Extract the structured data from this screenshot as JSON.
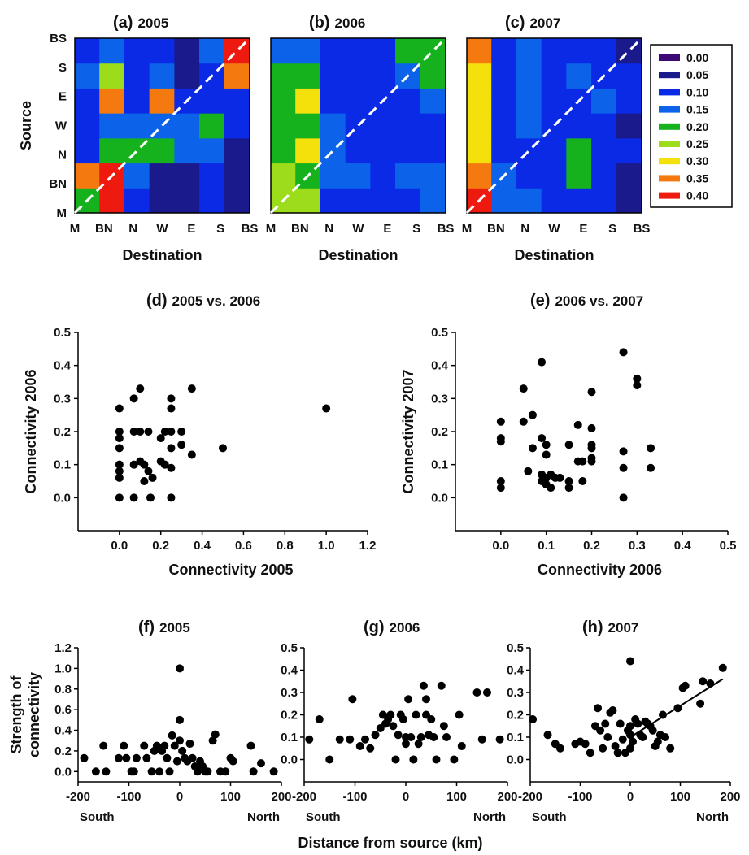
{
  "chart_data": [
    {
      "panel": "a",
      "type": "heatmap",
      "title_letter": "(a)",
      "title_year": "2005",
      "x_categories": [
        "M",
        "BN",
        "N",
        "W",
        "E",
        "S",
        "BS"
      ],
      "y_categories": [
        "M",
        "BN",
        "N",
        "W",
        "E",
        "S",
        "BS"
      ],
      "xlabel": "Destination",
      "ylabel": "Source",
      "values": [
        [
          0.2,
          0.4,
          0.1,
          0.05,
          0.05,
          0.1,
          0.05
        ],
        [
          0.35,
          0.4,
          0.15,
          0.05,
          0.05,
          0.1,
          0.05
        ],
        [
          0.1,
          0.2,
          0.2,
          0.2,
          0.15,
          0.15,
          0.05
        ],
        [
          0.1,
          0.15,
          0.15,
          0.15,
          0.15,
          0.2,
          0.1
        ],
        [
          0.1,
          0.35,
          0.1,
          0.35,
          0.1,
          0.1,
          0.1
        ],
        [
          0.15,
          0.25,
          0.1,
          0.15,
          0.05,
          0.1,
          0.35
        ],
        [
          0.1,
          0.15,
          0.1,
          0.1,
          0.05,
          0.15,
          0.4
        ]
      ]
    },
    {
      "panel": "b",
      "type": "heatmap",
      "title_letter": "(b)",
      "title_year": "2006",
      "x_categories": [
        "M",
        "BN",
        "N",
        "W",
        "E",
        "S",
        "BS"
      ],
      "y_categories": [
        "M",
        "BN",
        "N",
        "W",
        "E",
        "S",
        "BS"
      ],
      "xlabel": "Destination",
      "values": [
        [
          0.25,
          0.25,
          0.1,
          0.1,
          0.1,
          0.1,
          0.15
        ],
        [
          0.25,
          0.2,
          0.15,
          0.15,
          0.1,
          0.15,
          0.15
        ],
        [
          0.2,
          0.3,
          0.15,
          0.1,
          0.1,
          0.1,
          0.1
        ],
        [
          0.2,
          0.2,
          0.15,
          0.1,
          0.1,
          0.1,
          0.1
        ],
        [
          0.2,
          0.3,
          0.1,
          0.1,
          0.1,
          0.1,
          0.15
        ],
        [
          0.2,
          0.2,
          0.1,
          0.1,
          0.1,
          0.15,
          0.2
        ],
        [
          0.15,
          0.15,
          0.1,
          0.1,
          0.1,
          0.2,
          0.2
        ]
      ]
    },
    {
      "panel": "c",
      "type": "heatmap",
      "title_letter": "(c)",
      "title_year": "2007",
      "x_categories": [
        "M",
        "BN",
        "N",
        "W",
        "E",
        "S",
        "BS"
      ],
      "y_categories": [
        "M",
        "BN",
        "N",
        "W",
        "E",
        "S",
        "BS"
      ],
      "xlabel": "Destination",
      "values": [
        [
          0.4,
          0.15,
          0.15,
          0.1,
          0.1,
          0.1,
          0.05
        ],
        [
          0.35,
          0.15,
          0.1,
          0.1,
          0.2,
          0.1,
          0.05
        ],
        [
          0.3,
          0.1,
          0.1,
          0.1,
          0.2,
          0.1,
          0.1
        ],
        [
          0.3,
          0.1,
          0.15,
          0.1,
          0.1,
          0.1,
          0.05
        ],
        [
          0.3,
          0.1,
          0.15,
          0.1,
          0.1,
          0.15,
          0.1
        ],
        [
          0.3,
          0.1,
          0.15,
          0.1,
          0.15,
          0.1,
          0.1
        ],
        [
          0.35,
          0.1,
          0.15,
          0.1,
          0.1,
          0.1,
          0.05
        ]
      ]
    },
    {
      "panel": "legend",
      "type": "legend",
      "items": [
        {
          "label": "0.00",
          "color": "#3d0a75"
        },
        {
          "label": "0.05",
          "color": "#1b1a8c"
        },
        {
          "label": "0.10",
          "color": "#0a2ae6"
        },
        {
          "label": "0.15",
          "color": "#0c63ea"
        },
        {
          "label": "0.20",
          "color": "#16b21e"
        },
        {
          "label": "0.25",
          "color": "#9cdc1a"
        },
        {
          "label": "0.30",
          "color": "#f4e10c"
        },
        {
          "label": "0.35",
          "color": "#f47a10"
        },
        {
          "label": "0.40",
          "color": "#ee1a10"
        }
      ]
    },
    {
      "panel": "d",
      "type": "scatter",
      "title_letter": "(d)",
      "title_rest": "2005 vs. 2006",
      "xlabel": "Connectivity 2005",
      "ylabel": "Connectivity 2006",
      "xlim": [
        -0.2,
        1.2
      ],
      "ylim": [
        -0.1,
        0.5
      ],
      "xticks": [
        "0.0",
        "0.2",
        "0.4",
        "0.6",
        "0.8",
        "1.0",
        "1.2"
      ],
      "yticks": [
        "0.0",
        "0.1",
        "0.2",
        "0.3",
        "0.4",
        "0.5"
      ],
      "points": [
        [
          0,
          0.27
        ],
        [
          0,
          0.2
        ],
        [
          0,
          0.18
        ],
        [
          0,
          0.15
        ],
        [
          0,
          0.1
        ],
        [
          0,
          0.08
        ],
        [
          0,
          0.06
        ],
        [
          0,
          0.0
        ],
        [
          0.07,
          0.3
        ],
        [
          0.07,
          0.2
        ],
        [
          0.07,
          0.1
        ],
        [
          0.07,
          0.0
        ],
        [
          0.1,
          0.33
        ],
        [
          0.1,
          0.2
        ],
        [
          0.1,
          0.11
        ],
        [
          0.12,
          0.1
        ],
        [
          0.12,
          0.05
        ],
        [
          0.14,
          0.2
        ],
        [
          0.14,
          0.08
        ],
        [
          0.16,
          0.06
        ],
        [
          0.15,
          0.0
        ],
        [
          0.2,
          0.18
        ],
        [
          0.2,
          0.11
        ],
        [
          0.22,
          0.2
        ],
        [
          0.22,
          0.1
        ],
        [
          0.25,
          0.3
        ],
        [
          0.25,
          0.27
        ],
        [
          0.25,
          0.2
        ],
        [
          0.25,
          0.15
        ],
        [
          0.25,
          0.09
        ],
        [
          0.25,
          0.0
        ],
        [
          0.3,
          0.2
        ],
        [
          0.3,
          0.16
        ],
        [
          0.35,
          0.33
        ],
        [
          0.35,
          0.13
        ],
        [
          0.5,
          0.15
        ],
        [
          1.0,
          0.27
        ]
      ]
    },
    {
      "panel": "e",
      "type": "scatter",
      "title_letter": "(e)",
      "title_rest": "2006 vs. 2007",
      "xlabel": "Connectivity 2006",
      "ylabel": "Connectivity 2007",
      "xlim": [
        -0.1,
        0.5
      ],
      "ylim": [
        -0.1,
        0.5
      ],
      "xticks": [
        "0.0",
        "0.1",
        "0.2",
        "0.3",
        "0.4",
        "0.5"
      ],
      "yticks": [
        "0.0",
        "0.1",
        "0.2",
        "0.3",
        "0.4",
        "0.5"
      ],
      "points": [
        [
          0,
          0.23
        ],
        [
          0,
          0.18
        ],
        [
          0,
          0.17
        ],
        [
          0,
          0.05
        ],
        [
          0,
          0.03
        ],
        [
          0.05,
          0.33
        ],
        [
          0.05,
          0.23
        ],
        [
          0.06,
          0.08
        ],
        [
          0.07,
          0.25
        ],
        [
          0.07,
          0.15
        ],
        [
          0.09,
          0.41
        ],
        [
          0.09,
          0.18
        ],
        [
          0.09,
          0.07
        ],
        [
          0.09,
          0.05
        ],
        [
          0.1,
          0.16
        ],
        [
          0.1,
          0.13
        ],
        [
          0.1,
          0.06
        ],
        [
          0.1,
          0.04
        ],
        [
          0.11,
          0.07
        ],
        [
          0.11,
          0.03
        ],
        [
          0.12,
          0.06
        ],
        [
          0.13,
          0.06
        ],
        [
          0.15,
          0.16
        ],
        [
          0.15,
          0.05
        ],
        [
          0.15,
          0.03
        ],
        [
          0.17,
          0.22
        ],
        [
          0.17,
          0.11
        ],
        [
          0.18,
          0.05
        ],
        [
          0.18,
          0.11
        ],
        [
          0.2,
          0.32
        ],
        [
          0.2,
          0.21
        ],
        [
          0.2,
          0.16
        ],
        [
          0.2,
          0.15
        ],
        [
          0.2,
          0.12
        ],
        [
          0.2,
          0.11
        ],
        [
          0.27,
          0.44
        ],
        [
          0.27,
          0.14
        ],
        [
          0.27,
          0.09
        ],
        [
          0.27,
          0.0
        ],
        [
          0.3,
          0.36
        ],
        [
          0.3,
          0.34
        ],
        [
          0.33,
          0.15
        ],
        [
          0.33,
          0.09
        ]
      ]
    },
    {
      "panel": "f",
      "type": "scatter",
      "title_letter": "(f)",
      "title_rest": "2005",
      "ylabel_lines": [
        "Strength of",
        "connectivity"
      ],
      "xlim": [
        -200,
        200
      ],
      "ylim": [
        -0.1,
        1.2
      ],
      "xticks": [
        "-200",
        "-100",
        "0",
        "100",
        "200"
      ],
      "yticks": [
        "0.0",
        "0.2",
        "0.4",
        "0.6",
        "0.8",
        "1.0",
        "1.2"
      ],
      "south": "South",
      "north": "North",
      "points": [
        [
          -188,
          0.13
        ],
        [
          -165,
          0
        ],
        [
          -150,
          0.25
        ],
        [
          -145,
          0
        ],
        [
          -120,
          0.13
        ],
        [
          -110,
          0.25
        ],
        [
          -105,
          0.13
        ],
        [
          -95,
          0
        ],
        [
          -90,
          0
        ],
        [
          -85,
          0.13
        ],
        [
          -70,
          0.25
        ],
        [
          -65,
          0.13
        ],
        [
          -55,
          0
        ],
        [
          -50,
          0.2
        ],
        [
          -45,
          0.25
        ],
        [
          -40,
          0
        ],
        [
          -35,
          0.2
        ],
        [
          -30,
          0.25
        ],
        [
          -25,
          0.13
        ],
        [
          -20,
          0
        ],
        [
          -15,
          0.35
        ],
        [
          -10,
          0.25
        ],
        [
          -5,
          0.1
        ],
        [
          0,
          1.0
        ],
        [
          0,
          0.5
        ],
        [
          0,
          0.3
        ],
        [
          5,
          0.2
        ],
        [
          10,
          0.13
        ],
        [
          15,
          0.1
        ],
        [
          20,
          0.27
        ],
        [
          25,
          0.13
        ],
        [
          30,
          0.05
        ],
        [
          35,
          0
        ],
        [
          40,
          0.1
        ],
        [
          45,
          0.05
        ],
        [
          50,
          0
        ],
        [
          55,
          0
        ],
        [
          65,
          0.3
        ],
        [
          70,
          0.36
        ],
        [
          80,
          0
        ],
        [
          90,
          0
        ],
        [
          100,
          0.13
        ],
        [
          105,
          0.1
        ],
        [
          140,
          0.25
        ],
        [
          145,
          0
        ],
        [
          160,
          0.08
        ],
        [
          185,
          0
        ]
      ]
    },
    {
      "panel": "g",
      "type": "scatter",
      "title_letter": "(g)",
      "title_rest": "2006",
      "xlim": [
        -200,
        200
      ],
      "ylim": [
        -0.1,
        0.5
      ],
      "xticks": [
        "-200",
        "-100",
        "0",
        "100",
        "200"
      ],
      "yticks": [
        "0.0",
        "0.1",
        "0.2",
        "0.3",
        "0.4",
        "0.5"
      ],
      "south": "South",
      "north": "North",
      "points": [
        [
          -190,
          0.09
        ],
        [
          -170,
          0.18
        ],
        [
          -150,
          0
        ],
        [
          -130,
          0.09
        ],
        [
          -110,
          0.09
        ],
        [
          -105,
          0.27
        ],
        [
          -90,
          0.06
        ],
        [
          -80,
          0.09
        ],
        [
          -70,
          0.05
        ],
        [
          -60,
          0.11
        ],
        [
          -50,
          0.14
        ],
        [
          -45,
          0.2
        ],
        [
          -40,
          0.16
        ],
        [
          -35,
          0.18
        ],
        [
          -30,
          0.2
        ],
        [
          -25,
          0.15
        ],
        [
          -20,
          0
        ],
        [
          -15,
          0.11
        ],
        [
          -10,
          0.2
        ],
        [
          -5,
          0.18
        ],
        [
          0,
          0.1
        ],
        [
          0,
          0.07
        ],
        [
          5,
          0.27
        ],
        [
          10,
          0.1
        ],
        [
          15,
          0
        ],
        [
          20,
          0.2
        ],
        [
          25,
          0.07
        ],
        [
          30,
          0.1
        ],
        [
          35,
          0.33
        ],
        [
          40,
          0.27
        ],
        [
          40,
          0.2
        ],
        [
          45,
          0.11
        ],
        [
          50,
          0.18
        ],
        [
          55,
          0.1
        ],
        [
          60,
          0
        ],
        [
          70,
          0.33
        ],
        [
          75,
          0.15
        ],
        [
          80,
          0.1
        ],
        [
          95,
          0
        ],
        [
          105,
          0.2
        ],
        [
          110,
          0.06
        ],
        [
          140,
          0.3
        ],
        [
          150,
          0.09
        ],
        [
          160,
          0.3
        ],
        [
          185,
          0.09
        ]
      ]
    },
    {
      "panel": "h",
      "type": "scatter",
      "title_letter": "(h)",
      "title_rest": "2007",
      "xlim": [
        -200,
        200
      ],
      "ylim": [
        -0.1,
        0.5
      ],
      "xticks": [
        "-200",
        "-100",
        "0",
        "100",
        "200"
      ],
      "yticks": [
        "0.0",
        "0.1",
        "0.2",
        "0.3",
        "0.4",
        "0.5"
      ],
      "south": "South",
      "north": "North",
      "trendline": [
        [
          0,
          0.1
        ],
        [
          185,
          0.36
        ]
      ],
      "points": [
        [
          -195,
          0.18
        ],
        [
          -165,
          0.11
        ],
        [
          -150,
          0.07
        ],
        [
          -140,
          0.05
        ],
        [
          -110,
          0.07
        ],
        [
          -100,
          0.08
        ],
        [
          -90,
          0.07
        ],
        [
          -80,
          0.03
        ],
        [
          -70,
          0.15
        ],
        [
          -65,
          0.23
        ],
        [
          -60,
          0.13
        ],
        [
          -55,
          0.05
        ],
        [
          -50,
          0.16
        ],
        [
          -45,
          0.1
        ],
        [
          -40,
          0.21
        ],
        [
          -35,
          0.22
        ],
        [
          -30,
          0.06
        ],
        [
          -25,
          0.03
        ],
        [
          -20,
          0.16
        ],
        [
          -15,
          0.09
        ],
        [
          -10,
          0.03
        ],
        [
          -5,
          0.13
        ],
        [
          0,
          0.44
        ],
        [
          0,
          0.15
        ],
        [
          0,
          0.11
        ],
        [
          0,
          0.05
        ],
        [
          5,
          0.08
        ],
        [
          10,
          0.18
        ],
        [
          15,
          0.16
        ],
        [
          20,
          0.11
        ],
        [
          25,
          0.1
        ],
        [
          30,
          0.17
        ],
        [
          35,
          0.16
        ],
        [
          40,
          0.15
        ],
        [
          45,
          0.13
        ],
        [
          50,
          0.06
        ],
        [
          55,
          0.08
        ],
        [
          60,
          0.11
        ],
        [
          65,
          0.2
        ],
        [
          70,
          0.1
        ],
        [
          80,
          0.05
        ],
        [
          95,
          0.23
        ],
        [
          105,
          0.32
        ],
        [
          110,
          0.33
        ],
        [
          140,
          0.25
        ],
        [
          145,
          0.35
        ],
        [
          160,
          0.34
        ],
        [
          185,
          0.41
        ]
      ]
    }
  ],
  "figure": {
    "x_shared_label": "Distance from source (km)"
  }
}
